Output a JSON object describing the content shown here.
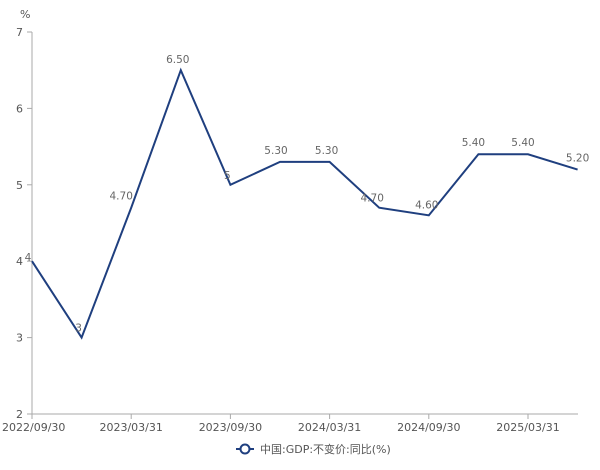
{
  "chart_data": {
    "type": "line",
    "y_unit": "%",
    "ylim": [
      2,
      7
    ],
    "y_ticks": [
      "2",
      "3",
      "4",
      "5",
      "6",
      "7"
    ],
    "x_tick_labels": [
      "2022/09/30",
      "2023/03/31",
      "2023/09/30",
      "2024/03/31",
      "2024/09/30",
      "2025/03/31"
    ],
    "x": [
      "2022/09/30",
      "2022/12/31",
      "2023/03/31",
      "2023/06/30",
      "2023/09/30",
      "2023/12/31",
      "2024/03/31",
      "2024/06/30",
      "2024/09/30",
      "2024/12/31",
      "2025/03/31",
      "2025/06/30"
    ],
    "series": [
      {
        "name": "中国:GDP:不变价:同比(%)",
        "values": [
          4,
          3,
          4.7,
          6.5,
          5,
          5.3,
          5.3,
          4.7,
          4.6,
          5.4,
          5.4,
          5.2
        ],
        "value_labels": [
          "4",
          "3",
          "4.70",
          "6.50",
          "5",
          "5.30",
          "5.30",
          "4.70",
          "4.60",
          "5.40",
          "5.40",
          "5.20"
        ],
        "color": "#1f3f7f"
      }
    ],
    "grid": false,
    "legend_position": "bottom-center"
  }
}
